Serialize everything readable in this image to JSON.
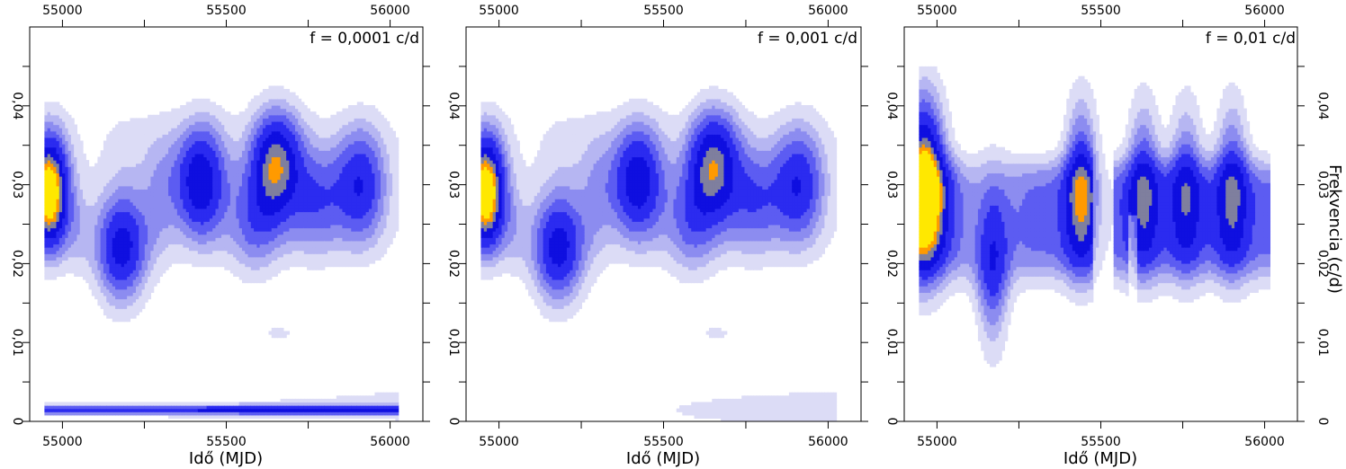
{
  "chart_data": [
    {
      "type": "heatmap",
      "title": "f = 0,0001 c/d",
      "xlabel": "Idő (MJD)",
      "ylabel": "",
      "xlim": [
        54900,
        56100
      ],
      "ylim": [
        0,
        0.05
      ],
      "x_ticks": [
        {
          "v": 55000,
          "label": "55000"
        },
        {
          "v": 55500,
          "label": "55500"
        },
        {
          "v": 56000,
          "label": "56000"
        }
      ],
      "y_ticks": [
        {
          "v": 0,
          "label": "0"
        },
        {
          "v": 0.01,
          "label": "0,01"
        },
        {
          "v": 0.02,
          "label": "0,02"
        },
        {
          "v": 0.03,
          "label": "0,03"
        },
        {
          "v": 0.04,
          "label": "0,04"
        }
      ],
      "peaks": [
        {
          "t": 54960,
          "f": 0.029,
          "level": 1.0
        },
        {
          "t": 55180,
          "f": 0.0215,
          "level": 0.58
        },
        {
          "t": 55420,
          "f": 0.0305,
          "level": 0.6
        },
        {
          "t": 55650,
          "f": 0.0325,
          "level": 0.7
        },
        {
          "t": 55910,
          "f": 0.03,
          "level": 0.45
        },
        {
          "t": 55580,
          "f": 0.025,
          "level": 0.3
        },
        {
          "t": 55780,
          "f": 0.028,
          "level": 0.35
        }
      ]
    },
    {
      "type": "heatmap",
      "title": "f = 0,001 c/d",
      "xlabel": "Idő (MJD)",
      "ylabel": "",
      "xlim": [
        54900,
        56100
      ],
      "ylim": [
        0,
        0.05
      ],
      "x_ticks": [
        {
          "v": 55000,
          "label": "55000"
        },
        {
          "v": 55500,
          "label": "55500"
        },
        {
          "v": 56000,
          "label": "56000"
        }
      ],
      "y_ticks": [
        {
          "v": 0,
          "label": "0"
        },
        {
          "v": 0.01,
          "label": "0,01"
        },
        {
          "v": 0.02,
          "label": "0,02"
        },
        {
          "v": 0.03,
          "label": "0,03"
        },
        {
          "v": 0.04,
          "label": "0,04"
        }
      ],
      "peaks": [
        {
          "t": 54960,
          "f": 0.029,
          "level": 1.0
        },
        {
          "t": 55180,
          "f": 0.0215,
          "level": 0.58
        },
        {
          "t": 55420,
          "f": 0.0305,
          "level": 0.58
        },
        {
          "t": 55650,
          "f": 0.0325,
          "level": 0.68
        },
        {
          "t": 55910,
          "f": 0.03,
          "level": 0.45
        },
        {
          "t": 55580,
          "f": 0.025,
          "level": 0.3
        },
        {
          "t": 55780,
          "f": 0.028,
          "level": 0.35
        }
      ]
    },
    {
      "type": "heatmap",
      "title": "f = 0,01 c/d",
      "xlabel": "Idő (MJD)",
      "ylabel": "Frekvencia (c/d)",
      "xlim": [
        54900,
        56100
      ],
      "ylim": [
        0,
        0.05
      ],
      "x_ticks": [
        {
          "v": 55000,
          "label": "55000"
        },
        {
          "v": 55500,
          "label": "55500"
        },
        {
          "v": 56000,
          "label": "56000"
        }
      ],
      "y_ticks": [
        {
          "v": 0,
          "label": "0"
        },
        {
          "v": 0.01,
          "label": "0,01"
        },
        {
          "v": 0.02,
          "label": "0,02"
        },
        {
          "v": 0.03,
          "label": "0,03"
        },
        {
          "v": 0.04,
          "label": "0,04"
        }
      ],
      "peaks": [
        {
          "t": 54960,
          "f": 0.03,
          "level": 1.0
        },
        {
          "t": 55170,
          "f": 0.02,
          "level": 0.45
        },
        {
          "t": 55440,
          "f": 0.03,
          "level": 0.55
        },
        {
          "t": 55630,
          "f": 0.03,
          "level": 0.45
        },
        {
          "t": 55900,
          "f": 0.03,
          "level": 0.45
        },
        {
          "t": 55760,
          "f": 0.03,
          "level": 0.4
        }
      ]
    }
  ]
}
